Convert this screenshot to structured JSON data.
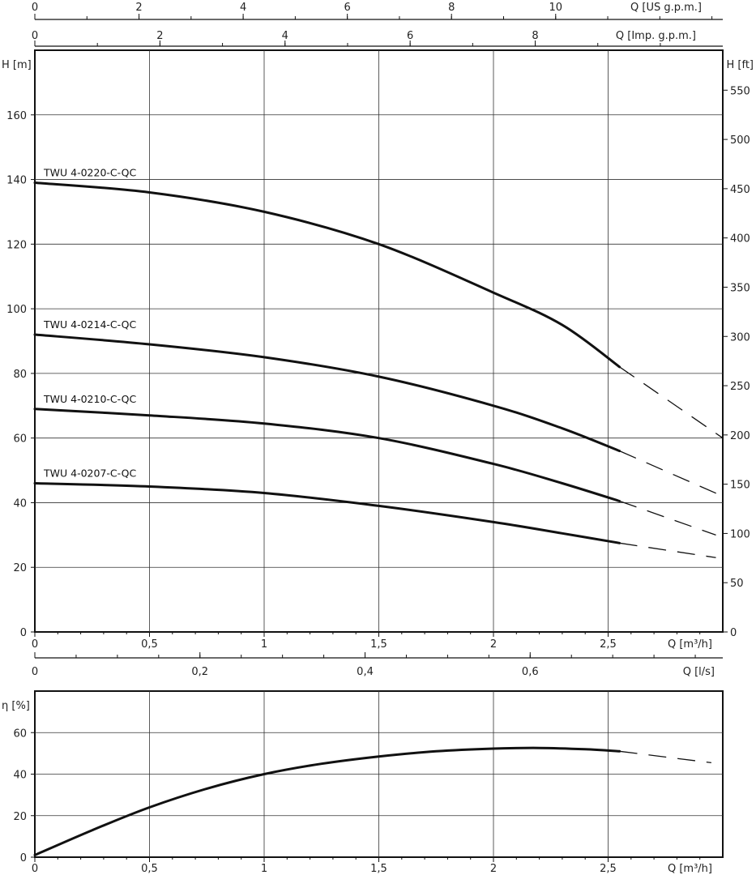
{
  "chart_data": [
    {
      "type": "line",
      "x_axis": {
        "label": "Q [m³/h]",
        "range": [
          0,
          3
        ],
        "ticks": [
          0,
          0.5,
          1,
          1.5,
          2,
          2.5
        ],
        "tick_labels": [
          "0",
          "0,5",
          "1",
          "1,5",
          "2",
          "2,5"
        ]
      },
      "y_axis": {
        "label": "H [m]",
        "range": [
          0,
          180
        ],
        "ticks": [
          0,
          20,
          40,
          60,
          80,
          100,
          120,
          140,
          160
        ],
        "tick_labels": [
          "0",
          "20",
          "40",
          "60",
          "80",
          "100",
          "120",
          "140",
          "160"
        ]
      },
      "y2_axis": {
        "label": "H [ft]",
        "ticks": [
          0,
          50,
          100,
          150,
          200,
          250,
          300,
          350,
          400,
          450,
          500,
          550
        ],
        "tick_labels": [
          "0",
          "50",
          "100",
          "150",
          "200",
          "250",
          "300",
          "350",
          "400",
          "450",
          "500",
          "550"
        ]
      },
      "x2_axes": [
        {
          "label": "Q [US g.p.m.]",
          "ticks": [
            0,
            2,
            4,
            6,
            8,
            10
          ],
          "tick_labels": [
            "0",
            "2",
            "4",
            "6",
            "8",
            "10"
          ]
        },
        {
          "label": "Q [Imp. g.p.m.]",
          "ticks": [
            0,
            2,
            4,
            6,
            8
          ],
          "tick_labels": [
            "0",
            "2",
            "4",
            "6",
            "8"
          ]
        },
        {
          "label": "Q [l/s]",
          "ticks": [
            0,
            0.2,
            0.4,
            0.6
          ],
          "tick_labels": [
            "0",
            "0,2",
            "0,4",
            "0,6"
          ]
        }
      ],
      "grid": true,
      "series": [
        {
          "name": "TWU 4-0220-C-QC",
          "x": [
            0,
            0.5,
            1,
            1.5,
            2,
            2.3,
            2.55
          ],
          "y": [
            139,
            136,
            130,
            120,
            105,
            95,
            82
          ],
          "dashed_x": [
            2.55,
            3.0
          ],
          "dashed_y": [
            82,
            60
          ]
        },
        {
          "name": "TWU 4-0214-C-QC",
          "x": [
            0,
            0.5,
            1,
            1.5,
            2,
            2.3,
            2.55
          ],
          "y": [
            92,
            89,
            85,
            79,
            70,
            63,
            56
          ],
          "dashed_x": [
            2.55,
            3.0
          ],
          "dashed_y": [
            56,
            42
          ]
        },
        {
          "name": "TWU 4-0210-C-QC",
          "x": [
            0,
            0.5,
            1,
            1.5,
            2,
            2.3,
            2.55
          ],
          "y": [
            69,
            67,
            64.5,
            60,
            52,
            46,
            40.5
          ],
          "dashed_x": [
            2.55,
            2.97
          ],
          "dashed_y": [
            40.5,
            30
          ]
        },
        {
          "name": "TWU 4-0207-C-QC",
          "x": [
            0,
            0.5,
            1,
            1.5,
            2,
            2.3,
            2.55
          ],
          "y": [
            46,
            45,
            43,
            39,
            34,
            30.5,
            27.5
          ],
          "dashed_x": [
            2.55,
            2.97
          ],
          "dashed_y": [
            27.5,
            23
          ]
        }
      ]
    },
    {
      "type": "line",
      "x_axis": {
        "label": "Q [m³/h]",
        "range": [
          0,
          3
        ],
        "ticks": [
          0,
          0.5,
          1,
          1.5,
          2,
          2.5
        ],
        "tick_labels": [
          "0",
          "0,5",
          "1",
          "1,5",
          "2",
          "2,5"
        ]
      },
      "y_axis": {
        "label": "η [%]",
        "range": [
          0,
          80
        ],
        "ticks": [
          0,
          20,
          40,
          60
        ],
        "tick_labels": [
          "0",
          "20",
          "40",
          "60"
        ]
      },
      "grid": true,
      "series": [
        {
          "x": [
            0,
            0.25,
            0.5,
            0.75,
            1,
            1.25,
            1.5,
            1.75,
            2,
            2.2,
            2.4,
            2.55
          ],
          "y": [
            1,
            13,
            24,
            33,
            40,
            45,
            48.5,
            51,
            52.3,
            52.6,
            52,
            51
          ],
          "dashed_x": [
            2.55,
            2.95
          ],
          "dashed_y": [
            51,
            45.5
          ]
        }
      ]
    }
  ]
}
